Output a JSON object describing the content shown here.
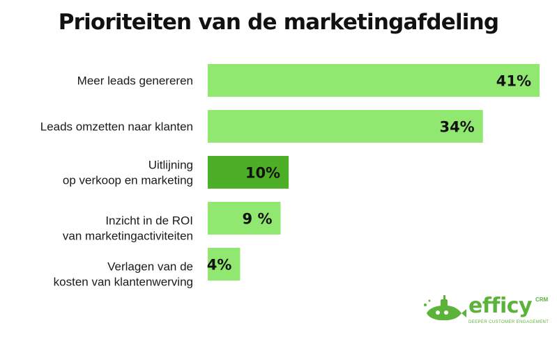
{
  "title": "Prioriteiten van de marketingafdeling",
  "chart_data": {
    "type": "bar",
    "orientation": "horizontal",
    "title": "Prioriteiten van de marketingafdeling",
    "categories": [
      [
        "Meer leads genereren"
      ],
      [
        "Leads omzetten naar klanten"
      ],
      [
        "Uitlijning",
        "op verkoop en marketing"
      ],
      [
        "Inzicht in de ROI",
        "van marketingactiviteiten"
      ],
      [
        "Verlagen van de",
        "kosten van klantenwerving"
      ]
    ],
    "values": [
      41,
      34,
      10,
      9,
      4
    ],
    "value_labels": [
      "41%",
      "34%",
      "10%",
      "9 %",
      "4%"
    ],
    "unit": "%",
    "xlim": [
      0,
      41
    ],
    "grid": false,
    "legend": "none",
    "colors": {
      "bar": "#90e870",
      "highlight": "#4caf27",
      "highlight_index": 2
    }
  },
  "logo": {
    "brand": "efficy",
    "suffix": "CRM",
    "tagline": "DEEPER CUSTOMER ENGAGEMENT",
    "color": "#5cb33a"
  }
}
